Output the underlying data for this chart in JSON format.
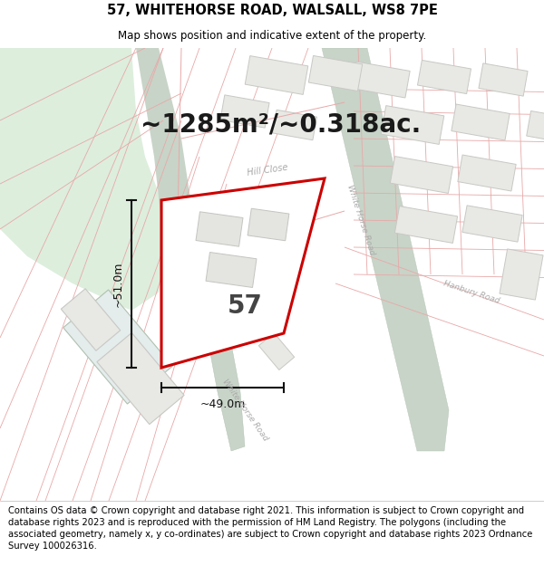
{
  "title": "57, WHITEHORSE ROAD, WALSALL, WS8 7PE",
  "subtitle": "Map shows position and indicative extent of the property.",
  "area_label": "~1285m²/~0.318ac.",
  "plot_number": "57",
  "dim_width": "~49.0m",
  "dim_height": "~51.0m",
  "footer": "Contains OS data © Crown copyright and database right 2021. This information is subject to Crown copyright and database rights 2023 and is reproduced with the permission of HM Land Registry. The polygons (including the associated geometry, namely x, y co-ordinates) are subject to Crown copyright and database rights 2023 Ordnance Survey 100026316.",
  "map_bg": "#f2f2ee",
  "green_color": "#ddeedd",
  "road_color": "#c8d4c8",
  "plot_fill": "#ffffff",
  "plot_stroke": "#cc0000",
  "bld_fill": "#e8e8e4",
  "bld_stroke": "#c8c8c4",
  "pink": "#e8a8a8",
  "pink_dark": "#d08080",
  "gray_road": "#c8c8c8",
  "road_label": "#aaaaaa",
  "dim_color": "#111111",
  "title_fontsize": 10.5,
  "subtitle_fontsize": 8.5,
  "area_fontsize": 20,
  "plot_num_fontsize": 20,
  "dim_fontsize": 9,
  "footer_fontsize": 7.2
}
